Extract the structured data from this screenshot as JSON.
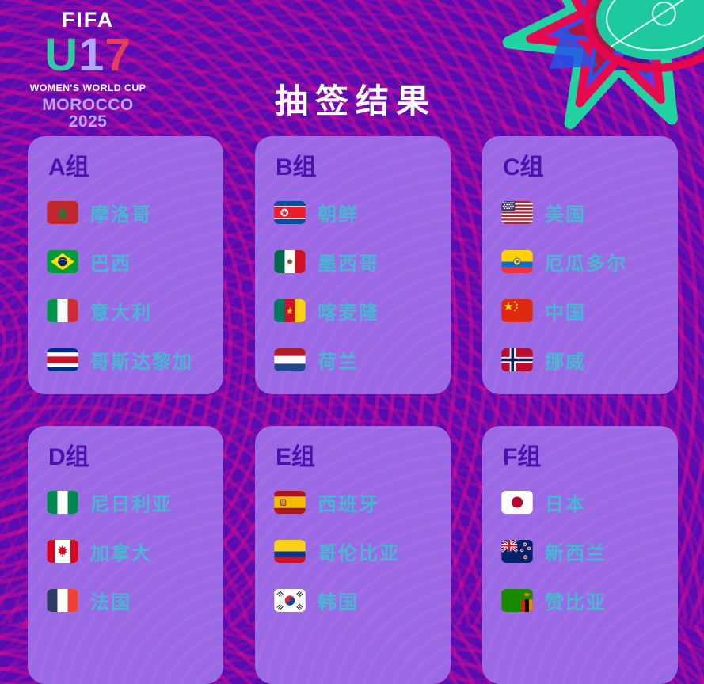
{
  "header": {
    "title": "抽签结果"
  },
  "logo": {
    "fifa": "FIFA",
    "u17_u": "U",
    "u17_one": "1",
    "u17_seven": "7",
    "subtitle": "WOMEN'S WORLD CUP",
    "host": "MOROCCO 2025"
  },
  "decoration": {
    "icon": "flower-pitch-emblem"
  },
  "colors": {
    "bg": "#5a0cb1",
    "card": "#9a69e6",
    "group-label": "#4c10ac",
    "team-name": "#47b7d2",
    "title": "#ffffff",
    "accent-magenta": "#f20d8c",
    "logo-u": "#35c7a5",
    "logo-one": "#b2a5f6",
    "logo-seven": "#e73a60",
    "logo-host": "#b5a7f3"
  },
  "groups": [
    {
      "id": "a",
      "label": "A组",
      "teams": [
        {
          "name": "摩洛哥",
          "flag": "morocco"
        },
        {
          "name": "巴西",
          "flag": "brazil"
        },
        {
          "name": "意大利",
          "flag": "italy"
        },
        {
          "name": "哥斯达黎加",
          "flag": "costa-rica"
        }
      ]
    },
    {
      "id": "b",
      "label": "B组",
      "teams": [
        {
          "name": "朝鲜",
          "flag": "north-korea"
        },
        {
          "name": "墨西哥",
          "flag": "mexico"
        },
        {
          "name": "喀麦隆",
          "flag": "cameroon"
        },
        {
          "name": "荷兰",
          "flag": "netherlands"
        }
      ]
    },
    {
      "id": "c",
      "label": "C组",
      "teams": [
        {
          "name": "美国",
          "flag": "usa"
        },
        {
          "name": "厄瓜多尔",
          "flag": "ecuador"
        },
        {
          "name": "中国",
          "flag": "china"
        },
        {
          "name": "挪威",
          "flag": "norway"
        }
      ]
    },
    {
      "id": "d",
      "label": "D组",
      "teams": [
        {
          "name": "尼日利亚",
          "flag": "nigeria"
        },
        {
          "name": "加拿大",
          "flag": "canada"
        },
        {
          "name": "法国",
          "flag": "france"
        }
      ]
    },
    {
      "id": "e",
      "label": "E组",
      "teams": [
        {
          "name": "西班牙",
          "flag": "spain"
        },
        {
          "name": "哥伦比亚",
          "flag": "colombia"
        },
        {
          "name": "韩国",
          "flag": "south-korea"
        }
      ]
    },
    {
      "id": "f",
      "label": "F组",
      "teams": [
        {
          "name": "日本",
          "flag": "japan"
        },
        {
          "name": "新西兰",
          "flag": "new-zealand"
        },
        {
          "name": "赞比亚",
          "flag": "zambia"
        }
      ]
    }
  ]
}
